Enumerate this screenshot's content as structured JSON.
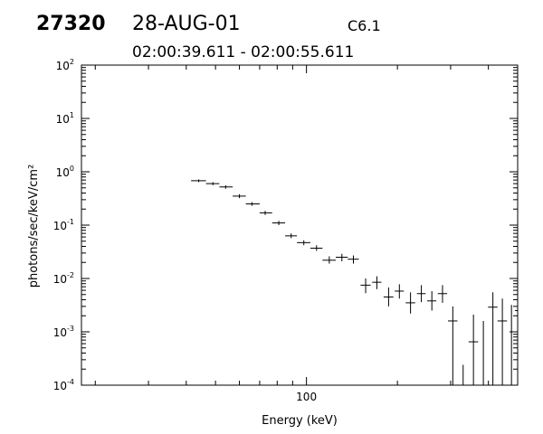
{
  "header": {
    "event_id": "27320",
    "date": "28-AUG-01",
    "goes_class": "C6.1",
    "time_range": "02:00:39.611 - 02:00:55.611"
  },
  "chart_data": {
    "type": "scatter",
    "title": "",
    "xlabel": "Energy (keV)",
    "ylabel": "photons/sec/keV/cm²",
    "x_scale": "log",
    "y_scale": "log",
    "xlim": [
      18,
      500
    ],
    "ylim": [
      0.0001,
      100
    ],
    "x_tick_labels": [
      {
        "value": 100,
        "label": "100"
      }
    ],
    "y_tick_labels": [
      {
        "value": 100,
        "mantissa": "10",
        "exp": "2"
      },
      {
        "value": 10,
        "mantissa": "10",
        "exp": "1"
      },
      {
        "value": 1,
        "mantissa": "10",
        "exp": "0"
      },
      {
        "value": 0.1,
        "mantissa": "10",
        "exp": "-1"
      },
      {
        "value": 0.01,
        "mantissa": "10",
        "exp": "-2"
      },
      {
        "value": 0.001,
        "mantissa": "10",
        "exp": "-3"
      },
      {
        "value": 0.0001,
        "mantissa": "10",
        "exp": "-4"
      }
    ],
    "grid": false,
    "points": [
      {
        "x": 44,
        "xerr": [
          41.5,
          46.5
        ],
        "y": 0.68,
        "yerr": [
          0.64,
          0.72
        ]
      },
      {
        "x": 49,
        "xerr": [
          46.5,
          51.5
        ],
        "y": 0.6,
        "yerr": [
          0.56,
          0.64
        ]
      },
      {
        "x": 54,
        "xerr": [
          51.5,
          57
        ],
        "y": 0.52,
        "yerr": [
          0.48,
          0.56
        ]
      },
      {
        "x": 60,
        "xerr": [
          57,
          63
        ],
        "y": 0.35,
        "yerr": [
          0.32,
          0.38
        ]
      },
      {
        "x": 66,
        "xerr": [
          63,
          70
        ],
        "y": 0.25,
        "yerr": [
          0.23,
          0.27
        ]
      },
      {
        "x": 73,
        "xerr": [
          70,
          77
        ],
        "y": 0.17,
        "yerr": [
          0.155,
          0.185
        ]
      },
      {
        "x": 81,
        "xerr": [
          77,
          85
        ],
        "y": 0.11,
        "yerr": [
          0.1,
          0.12
        ]
      },
      {
        "x": 89,
        "xerr": [
          85,
          93
        ],
        "y": 0.063,
        "yerr": [
          0.057,
          0.07
        ]
      },
      {
        "x": 98,
        "xerr": [
          93,
          103
        ],
        "y": 0.047,
        "yerr": [
          0.042,
          0.052
        ]
      },
      {
        "x": 108,
        "xerr": [
          103,
          113
        ],
        "y": 0.037,
        "yerr": [
          0.033,
          0.042
        ]
      },
      {
        "x": 119,
        "xerr": [
          113,
          125
        ],
        "y": 0.022,
        "yerr": [
          0.019,
          0.026
        ]
      },
      {
        "x": 131,
        "xerr": [
          125,
          137
        ],
        "y": 0.025,
        "yerr": [
          0.021,
          0.029
        ]
      },
      {
        "x": 143,
        "xerr": [
          137,
          149
        ],
        "y": 0.023,
        "yerr": [
          0.019,
          0.027
        ]
      },
      {
        "x": 157,
        "xerr": [
          151,
          163
        ],
        "y": 0.0075,
        "yerr": [
          0.0053,
          0.01
        ]
      },
      {
        "x": 171,
        "xerr": [
          165,
          177
        ],
        "y": 0.0085,
        "yerr": [
          0.0063,
          0.011
        ]
      },
      {
        "x": 187,
        "xerr": [
          180,
          194
        ],
        "y": 0.0045,
        "yerr": [
          0.003,
          0.0068
        ]
      },
      {
        "x": 203,
        "xerr": [
          196,
          210
        ],
        "y": 0.0058,
        "yerr": [
          0.0042,
          0.0078
        ]
      },
      {
        "x": 221,
        "xerr": [
          213,
          229
        ],
        "y": 0.0035,
        "yerr": [
          0.0022,
          0.0055
        ]
      },
      {
        "x": 240,
        "xerr": [
          232,
          248
        ],
        "y": 0.0052,
        "yerr": [
          0.0036,
          0.0075
        ]
      },
      {
        "x": 260,
        "xerr": [
          251,
          269
        ],
        "y": 0.0038,
        "yerr": [
          0.0025,
          0.0058
        ]
      },
      {
        "x": 282,
        "xerr": [
          272,
          292
        ],
        "y": 0.0052,
        "yerr": [
          0.0035,
          0.0075
        ]
      },
      {
        "x": 305,
        "xerr": [
          294,
          316
        ],
        "y": 0.0016,
        "yerr": [
          0.0001,
          0.003
        ]
      },
      {
        "x": 330,
        "xerr": null,
        "y": null,
        "yerr": [
          0.0001,
          0.00024
        ]
      },
      {
        "x": 357,
        "xerr": [
          344,
          370
        ],
        "y": 0.00065,
        "yerr": [
          0.0001,
          0.0021
        ]
      },
      {
        "x": 385,
        "xerr": null,
        "y": null,
        "yerr": [
          0.0001,
          0.0016
        ]
      },
      {
        "x": 414,
        "xerr": [
          399,
          429
        ],
        "y": 0.0029,
        "yerr": [
          0.0001,
          0.0055
        ]
      },
      {
        "x": 445,
        "xerr": [
          429,
          461
        ],
        "y": 0.0016,
        "yerr": [
          0.0001,
          0.0042
        ]
      },
      {
        "x": 477,
        "xerr": null,
        "y": null,
        "yerr": [
          0.0001,
          0.0032
        ]
      },
      {
        "x": 510,
        "xerr": [
          490,
          530
        ],
        "y": 0.0025,
        "yerr": [
          0.0001,
          0.0045
        ]
      }
    ]
  }
}
